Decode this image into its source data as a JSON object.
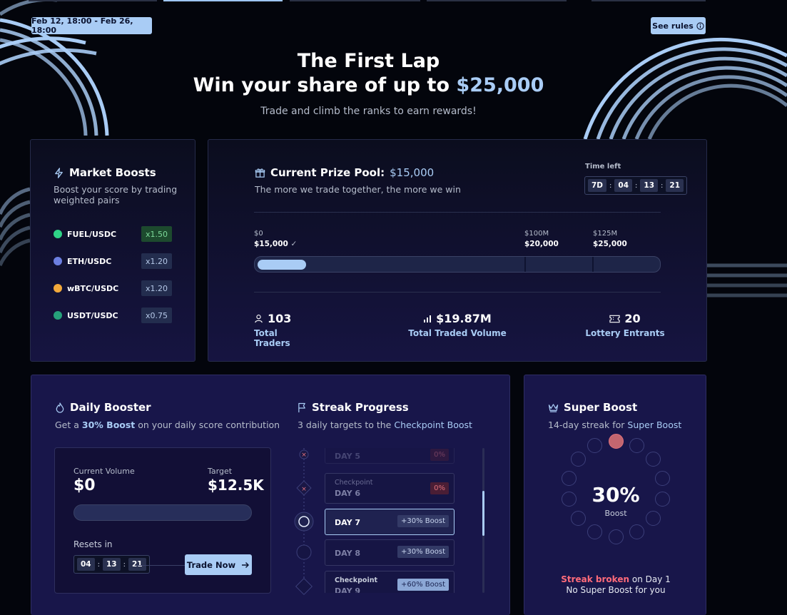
{
  "header": {
    "date_range": "Feb 12, 18:00 - Feb 26, 18:00",
    "rules_label": "See rules",
    "title": "The First Lap",
    "subtitle_prefix": "Win your share of up to ",
    "subtitle_amount": "$25,000",
    "description": "Trade and climb the ranks to earn rewards!"
  },
  "market_boosts": {
    "title": "Market Boosts",
    "description": "Boost your score by trading weighted pairs",
    "pairs": [
      {
        "name": "FUEL/USDC",
        "mult": "x1.50",
        "icon": "fuel-coin-icon",
        "color": "#2fd387"
      },
      {
        "name": "ETH/USDC",
        "mult": "x1.20",
        "icon": "eth-coin-icon",
        "color": "#6c7fe0"
      },
      {
        "name": "wBTC/USDC",
        "mult": "x1.20",
        "icon": "wbtc-coin-icon",
        "color": "#f2a93b"
      },
      {
        "name": "USDT/USDC",
        "mult": "x0.75",
        "icon": "usdt-coin-icon",
        "color": "#26a17b"
      }
    ]
  },
  "prize_pool": {
    "title_prefix": "Current Prize Pool: ",
    "title_amount": "$15,000",
    "description": "The more we trade together, the more we win",
    "time_left_label": "Time left",
    "time_left": {
      "d": "7D",
      "h": "04",
      "m": "13",
      "s": "21"
    },
    "milestones": [
      {
        "volume": "$0",
        "prize": "$15,000",
        "reached": true
      },
      {
        "volume": "$100M",
        "prize": "$20,000",
        "reached": false
      },
      {
        "volume": "$125M",
        "prize": "$25,000",
        "reached": false
      }
    ],
    "progress_fraction": 0.12,
    "stats": [
      {
        "value": "103",
        "label": "Total Traders",
        "icon": "user-icon"
      },
      {
        "value": "$19.87M",
        "label": "Total Traded Volume",
        "icon": "bar-chart-icon"
      },
      {
        "value": "20",
        "label": "Lottery Entrants",
        "icon": "ticket-icon"
      }
    ]
  },
  "daily_booster": {
    "title": "Daily Booster",
    "desc_prefix": "Get a ",
    "desc_highlight": "30% Boost",
    "desc_suffix": " on your daily score contribution",
    "current_volume_label": "Current Volume",
    "current_volume": "$0",
    "target_label": "Target",
    "target": "$12.5K",
    "volume_fraction": 0,
    "resets_label": "Resets in",
    "resets": {
      "h": "04",
      "m": "13",
      "s": "21"
    },
    "trade_button": "Trade Now"
  },
  "streak_progress": {
    "title": "Streak Progress",
    "desc_prefix": "3 daily targets to the ",
    "desc_highlight": "Checkpoint Boost",
    "checkpoint_label": "Checkpoint",
    "days": [
      {
        "label": "DAY 5",
        "badge": "0%",
        "checkpoint": false,
        "state": "failed"
      },
      {
        "label": "DAY 6",
        "badge": "0%",
        "checkpoint": true,
        "state": "failed"
      },
      {
        "label": "DAY 7",
        "badge": "+30% Boost",
        "checkpoint": false,
        "state": "current"
      },
      {
        "label": "DAY 8",
        "badge": "+30% Boost",
        "checkpoint": false,
        "state": "upcoming"
      },
      {
        "label": "DAY 9",
        "badge": "+60% Boost",
        "checkpoint": true,
        "state": "upcoming"
      }
    ]
  },
  "super_boost": {
    "title": "Super Boost",
    "desc_prefix": "14-day streak for ",
    "desc_highlight": "Super Boost",
    "percent": "30%",
    "percent_label": "Boost",
    "streak_total_days": 14,
    "streak_completed_days": 1,
    "status_broken": "Streak broken",
    "status_day": " on Day 1",
    "status_line2": "No Super Boost for you"
  }
}
